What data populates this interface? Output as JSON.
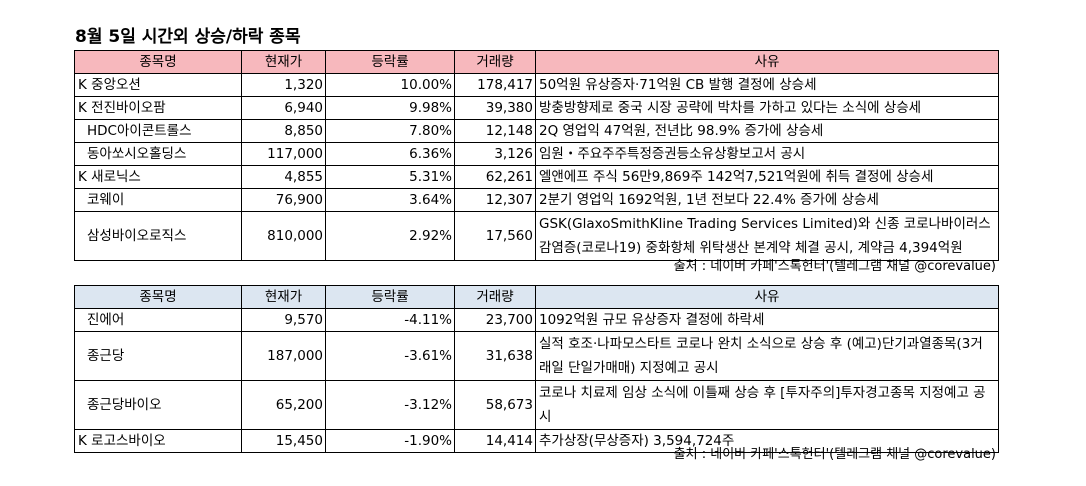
{
  "title": "8월 5일  시간외 상승/하락 종목",
  "columns": {
    "name": "종목명",
    "price": "현재가",
    "change": "등락률",
    "volume": "거래량",
    "reason": "사유"
  },
  "rising": [
    {
      "name": "K 중앙오션",
      "price": "1,320",
      "change": "10.00%",
      "volume": "178,417",
      "reason": "50억원 유상증자·71억원 CB 발행 결정에 상승세"
    },
    {
      "name": "K 전진바이오팜",
      "price": "6,940",
      "change": "9.98%",
      "volume": "39,380",
      "reason": "방충방향제로 중국 시장 공략에 박차를 가하고 있다는 소식에 상승세"
    },
    {
      "name": "HDC아이콘트롤스",
      "price": "8,850",
      "change": "7.80%",
      "volume": "12,148",
      "reason": "2Q 영업익 47억원, 전년比 98.9% 증가에 상승세"
    },
    {
      "name": "동아쏘시오홀딩스",
      "price": "117,000",
      "change": "6.36%",
      "volume": "3,126",
      "reason": "임원・주요주주특정증권등소유상황보고서 공시"
    },
    {
      "name": "K 새로닉스",
      "price": "4,855",
      "change": "5.31%",
      "volume": "62,261",
      "reason": "엘앤에프 주식 56만9,869주 142억7,521억원에 취득 결정에 상승세"
    },
    {
      "name": "코웨이",
      "price": "76,900",
      "change": "3.64%",
      "volume": "12,307",
      "reason": "2분기 영업익 1692억원, 1년 전보다 22.4% 증가에 상승세"
    },
    {
      "name": "삼성바이오로직스",
      "price": "810,000",
      "change": "2.92%",
      "volume": "17,560",
      "reason": "GSK(GlaxoSmithKline Trading Services Limited)와 신종 코로나바이러스 감염증(코로나19) 중화항체 위탁생산 본계약 체결 공시, 계약금 4,394억원"
    }
  ],
  "falling": [
    {
      "name": "진에어",
      "price": "9,570",
      "change": "-4.11%",
      "volume": "23,700",
      "reason": "1092억원 규모 유상증자 결정에 하락세"
    },
    {
      "name": "종근당",
      "price": "187,000",
      "change": "-3.61%",
      "volume": "31,638",
      "reason": "실적 호조·나파모스타트 코로나 완치 소식으로 상승 후  (예고)단기과열종목(3거래일 단일가매매) 지정예고 공시"
    },
    {
      "name": "종근당바이오",
      "price": "65,200",
      "change": "-3.12%",
      "volume": "58,673",
      "reason": "코로나 치료제 임상 소식에 이틀째 상승 후 [투자주의]투자경고종목 지정예고 공시"
    },
    {
      "name": "K 로고스바이오",
      "price": "15,450",
      "change": "-1.90%",
      "volume": "14,414",
      "reason": "추가상장(무상증자) 3,594,724주"
    }
  ],
  "source": "출처 : 네이버 카페'스톡헌터'(텔레그램 채널 @corevalue)",
  "colors": {
    "rise_header": "#f7b8bd",
    "fall_header": "#dce6f1"
  }
}
